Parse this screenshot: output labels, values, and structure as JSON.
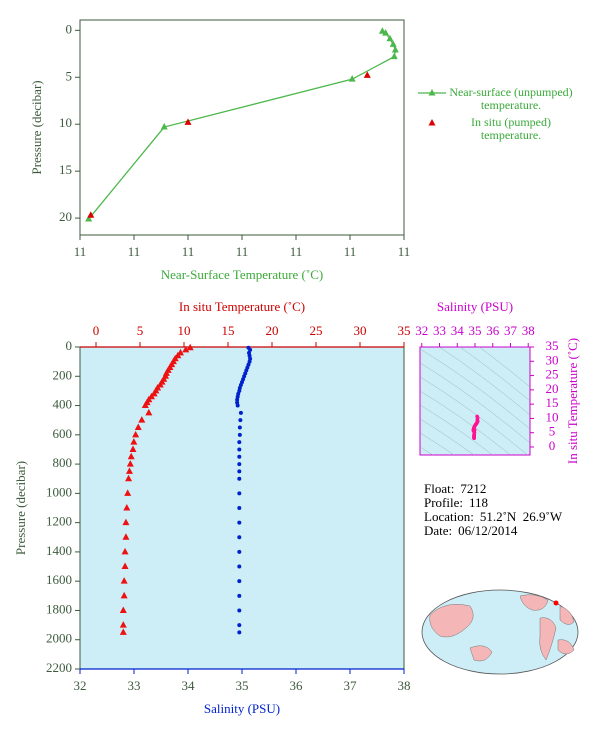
{
  "chart_data": [
    {
      "type": "line",
      "xlabel": "Near-Surface Temperature (˚C)",
      "ylabel": "Pressure (decibar)",
      "xlim": [
        10.9,
        11.2
      ],
      "xticks": [
        {
          "value": 10.9,
          "label": "11"
        },
        {
          "value": 10.95,
          "label": "11"
        },
        {
          "value": 11.0,
          "label": "11"
        },
        {
          "value": 11.05,
          "label": "11"
        },
        {
          "value": 11.1,
          "label": "11"
        },
        {
          "value": 11.15,
          "label": "11"
        },
        {
          "value": 11.2,
          "label": "11"
        }
      ],
      "ylim": [
        21.8,
        -1.1
      ],
      "yticks": [
        0,
        5,
        10,
        15,
        20
      ],
      "series": [
        {
          "name": "Near-surface (unpumped) temperature.",
          "color": "#4cb84c",
          "marker": "triangle",
          "line": true,
          "x": [
            10.908,
            10.978,
            11.152,
            11.191,
            11.192,
            11.19,
            11.187,
            11.183,
            11.18
          ],
          "values": [
            20.1,
            10.3,
            5.2,
            2.8,
            2.1,
            1.5,
            0.9,
            0.3,
            0.1
          ]
        },
        {
          "name": "In situ (pumped) temperature.",
          "color": "#dd0000",
          "marker": "triangle",
          "line": false,
          "x": [
            10.91,
            11.0,
            11.166
          ],
          "values": [
            19.7,
            9.8,
            4.8
          ]
        }
      ]
    },
    {
      "type": "profile",
      "ylabel": "Pressure (decibar)",
      "ylim": [
        2200,
        0
      ],
      "yticks": [
        0,
        200,
        400,
        600,
        800,
        1000,
        1200,
        1400,
        1600,
        1800,
        2000,
        2200
      ],
      "xlabel": "Salinity (PSU)",
      "xlim": [
        32,
        38
      ],
      "xticks": [
        32,
        33,
        34,
        35,
        36,
        37,
        38
      ],
      "x2label": "In situ Temperature (˚C)",
      "x2lim": [
        -1.82,
        35
      ],
      "x2ticks": [
        0,
        5,
        10,
        15,
        20,
        25,
        30,
        35
      ],
      "background": "#cdeef7",
      "pressure": [
        5,
        20,
        40,
        60,
        80,
        100,
        120,
        140,
        160,
        180,
        200,
        220,
        240,
        260,
        280,
        300,
        320,
        340,
        360,
        380,
        400,
        450,
        500,
        550,
        600,
        650,
        700,
        750,
        800,
        850,
        900,
        1000,
        1100,
        1200,
        1300,
        1400,
        1500,
        1600,
        1700,
        1800,
        1900,
        1950
      ],
      "series": [
        {
          "axis": "x2",
          "color": "#ee1111",
          "marker": "triangle",
          "values": [
            10.7,
            10.2,
            9.6,
            9.3,
            9.0,
            8.8,
            8.6,
            8.4,
            8.2,
            8.0,
            7.9,
            7.7,
            7.5,
            7.3,
            7.0,
            6.8,
            6.6,
            6.3,
            6.0,
            5.8,
            5.6,
            6.0,
            5.2,
            4.8,
            4.5,
            4.3,
            4.2,
            4.0,
            3.9,
            3.8,
            3.7,
            3.6,
            3.5,
            3.4,
            3.4,
            3.3,
            3.3,
            3.2,
            3.2,
            3.1,
            3.1,
            3.1
          ]
        },
        {
          "axis": "x",
          "color": "#0022cc",
          "marker": "circle",
          "values": [
            35.12,
            35.15,
            35.13,
            35.14,
            35.15,
            35.14,
            35.12,
            35.1,
            35.08,
            35.06,
            35.04,
            35.02,
            35.0,
            34.98,
            34.96,
            34.95,
            34.93,
            34.92,
            34.91,
            34.91,
            34.92,
            34.98,
            34.97,
            34.96,
            34.96,
            34.95,
            34.95,
            34.95,
            34.95,
            34.95,
            34.95,
            34.95,
            34.95,
            34.95,
            34.95,
            34.95,
            34.95,
            34.95,
            34.95,
            34.95,
            34.95,
            34.95
          ]
        }
      ]
    },
    {
      "type": "ts",
      "xlabel": "Salinity (PSU)",
      "xlim": [
        31.9,
        38.1
      ],
      "xticks": [
        32,
        33,
        34,
        35,
        36,
        37,
        38
      ],
      "ylabel": "In situ Temperature (˚C)",
      "ylim": [
        -2.8,
        35
      ],
      "yticks": [
        0,
        5,
        10,
        15,
        20,
        25,
        30,
        35
      ],
      "color": "#ff1493",
      "axis_color": "#cc00cc"
    }
  ],
  "info": [
    {
      "label": "Float:",
      "value": "7212"
    },
    {
      "label": "Profile:",
      "value": "118"
    },
    {
      "label": "Location:",
      "value": "51.2˚N  26.9˚W"
    },
    {
      "label": "Date:",
      "value": "06/12/2014"
    }
  ]
}
